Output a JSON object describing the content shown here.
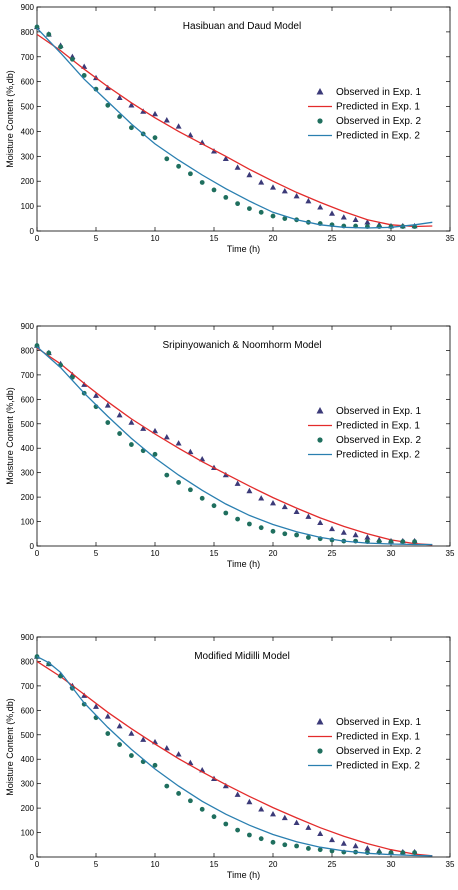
{
  "colors": {
    "observed_exp1": "#3b3a78",
    "predicted_exp1": "#e32b2b",
    "observed_exp2": "#1f6f5e",
    "predicted_exp2": "#2a7fb0"
  },
  "chart_data": [
    {
      "type": "scatter",
      "title": "Hasibuan and Daud Model",
      "xlabel": "Time (h)",
      "ylabel": "Moisture Content (%,db)",
      "xlim": [
        0,
        35
      ],
      "ylim": [
        0,
        900
      ],
      "xticks": [
        0,
        5,
        10,
        15,
        20,
        25,
        30,
        35
      ],
      "yticks": [
        0,
        100,
        200,
        300,
        400,
        500,
        600,
        700,
        800,
        900
      ],
      "legend_position": "right",
      "series": [
        {
          "name": "Observed in Exp. 1",
          "kind": "points",
          "marker": "triangle",
          "color": "#3b3a78",
          "x": [
            0,
            1,
            2,
            3,
            4,
            5,
            6,
            7,
            8,
            9,
            10,
            11,
            12,
            13,
            14,
            15,
            16,
            17,
            18,
            19,
            20,
            21,
            22,
            23,
            24,
            25,
            26,
            27,
            28,
            29,
            30,
            31,
            32
          ],
          "y": [
            820,
            790,
            745,
            700,
            660,
            615,
            575,
            535,
            505,
            480,
            470,
            445,
            420,
            385,
            355,
            320,
            290,
            255,
            225,
            195,
            175,
            160,
            140,
            120,
            95,
            70,
            55,
            45,
            35,
            25,
            20,
            20,
            20
          ]
        },
        {
          "name": "Predicted in Exp. 1",
          "kind": "line",
          "color": "#e32b2b",
          "x": [
            0,
            2,
            4,
            6,
            8,
            10,
            12,
            14,
            16,
            18,
            20,
            22,
            24,
            26,
            28,
            30,
            32,
            33.5
          ],
          "y": [
            790,
            725,
            650,
            580,
            515,
            455,
            400,
            350,
            300,
            248,
            200,
            155,
            115,
            78,
            45,
            25,
            18,
            20
          ]
        },
        {
          "name": "Observed in Exp. 2",
          "kind": "points",
          "marker": "circle",
          "color": "#1f6f5e",
          "x": [
            0,
            1,
            2,
            3,
            4,
            5,
            6,
            7,
            8,
            9,
            10,
            11,
            12,
            13,
            14,
            15,
            16,
            17,
            18,
            19,
            20,
            21,
            22,
            23,
            24,
            25,
            26,
            27,
            28,
            29,
            30,
            31,
            32
          ],
          "y": [
            820,
            790,
            740,
            690,
            625,
            570,
            505,
            460,
            415,
            390,
            375,
            290,
            260,
            230,
            195,
            165,
            135,
            110,
            90,
            75,
            60,
            50,
            45,
            35,
            30,
            25,
            20,
            20,
            18,
            18,
            18,
            18,
            18
          ]
        },
        {
          "name": "Predicted in Exp. 2",
          "kind": "line",
          "color": "#2a7fb0",
          "x": [
            0,
            2,
            4,
            6,
            8,
            10,
            12,
            14,
            16,
            18,
            20,
            22,
            24,
            26,
            28,
            30,
            32,
            33.5
          ],
          "y": [
            815,
            715,
            610,
            520,
            430,
            350,
            285,
            225,
            170,
            120,
            75,
            45,
            25,
            15,
            12,
            15,
            25,
            35
          ]
        }
      ]
    },
    {
      "type": "scatter",
      "title": "Sripinyowanich & Noomhorm Model",
      "xlabel": "Time (h)",
      "ylabel": "Moisture Content (%,db)",
      "xlim": [
        0,
        35
      ],
      "ylim": [
        0,
        900
      ],
      "xticks": [
        0,
        5,
        10,
        15,
        20,
        25,
        30,
        35
      ],
      "yticks": [
        0,
        100,
        200,
        300,
        400,
        500,
        600,
        700,
        800,
        900
      ],
      "legend_position": "right",
      "series": [
        {
          "name": "Observed in Exp. 1",
          "kind": "points",
          "marker": "triangle",
          "color": "#3b3a78",
          "x": [
            0,
            1,
            2,
            3,
            4,
            5,
            6,
            7,
            8,
            9,
            10,
            11,
            12,
            13,
            14,
            15,
            16,
            17,
            18,
            19,
            20,
            21,
            22,
            23,
            24,
            25,
            26,
            27,
            28,
            29,
            30,
            31,
            32
          ],
          "y": [
            820,
            790,
            745,
            700,
            660,
            615,
            575,
            535,
            505,
            480,
            470,
            445,
            420,
            385,
            355,
            320,
            290,
            255,
            225,
            195,
            175,
            160,
            140,
            120,
            95,
            70,
            55,
            45,
            35,
            25,
            20,
            20,
            20
          ]
        },
        {
          "name": "Predicted in Exp. 1",
          "kind": "line",
          "color": "#e32b2b",
          "x": [
            0,
            2,
            4,
            6,
            8,
            10,
            12,
            14,
            16,
            18,
            20,
            22,
            24,
            26,
            28,
            30,
            32,
            33.5
          ],
          "y": [
            810,
            745,
            665,
            590,
            520,
            458,
            400,
            345,
            295,
            245,
            198,
            155,
            115,
            80,
            50,
            25,
            10,
            5
          ]
        },
        {
          "name": "Observed in Exp. 2",
          "kind": "points",
          "marker": "circle",
          "color": "#1f6f5e",
          "x": [
            0,
            1,
            2,
            3,
            4,
            5,
            6,
            7,
            8,
            9,
            10,
            11,
            12,
            13,
            14,
            15,
            16,
            17,
            18,
            19,
            20,
            21,
            22,
            23,
            24,
            25,
            26,
            27,
            28,
            29,
            30,
            31,
            32
          ],
          "y": [
            820,
            790,
            740,
            690,
            625,
            570,
            505,
            460,
            415,
            390,
            375,
            290,
            260,
            230,
            195,
            165,
            135,
            110,
            90,
            75,
            60,
            50,
            45,
            35,
            30,
            25,
            20,
            20,
            18,
            18,
            18,
            18,
            18
          ]
        },
        {
          "name": "Predicted in Exp. 2",
          "kind": "line",
          "color": "#2a7fb0",
          "x": [
            0,
            2,
            4,
            6,
            8,
            10,
            12,
            14,
            16,
            18,
            20,
            22,
            24,
            26,
            28,
            30,
            32,
            33.5
          ],
          "y": [
            815,
            730,
            625,
            530,
            440,
            360,
            290,
            228,
            172,
            125,
            88,
            58,
            35,
            20,
            12,
            8,
            6,
            6
          ]
        }
      ]
    },
    {
      "type": "scatter",
      "title": "Modified Midilli Model",
      "xlabel": "Time (h)",
      "ylabel": "Moisture Content (%,db)",
      "xlim": [
        0,
        35
      ],
      "ylim": [
        0,
        900
      ],
      "xticks": [
        0,
        5,
        10,
        15,
        20,
        25,
        30,
        35
      ],
      "yticks": [
        0,
        100,
        200,
        300,
        400,
        500,
        600,
        700,
        800,
        900
      ],
      "legend_position": "right",
      "series": [
        {
          "name": "Observed in Exp. 1",
          "kind": "points",
          "marker": "triangle",
          "color": "#3b3a78",
          "x": [
            0,
            1,
            2,
            3,
            4,
            5,
            6,
            7,
            8,
            9,
            10,
            11,
            12,
            13,
            14,
            15,
            16,
            17,
            18,
            19,
            20,
            21,
            22,
            23,
            24,
            25,
            26,
            27,
            28,
            29,
            30,
            31,
            32
          ],
          "y": [
            820,
            790,
            745,
            700,
            660,
            615,
            575,
            535,
            505,
            480,
            470,
            445,
            420,
            385,
            355,
            320,
            290,
            255,
            225,
            195,
            175,
            160,
            140,
            120,
            95,
            70,
            55,
            45,
            35,
            25,
            20,
            20,
            20
          ]
        },
        {
          "name": "Predicted in Exp. 1",
          "kind": "line",
          "color": "#e32b2b",
          "x": [
            0,
            2,
            4,
            6,
            8,
            10,
            12,
            14,
            16,
            18,
            20,
            22,
            24,
            26,
            28,
            30,
            32,
            33.5
          ],
          "y": [
            800,
            738,
            665,
            592,
            525,
            462,
            402,
            348,
            296,
            248,
            202,
            160,
            120,
            85,
            55,
            30,
            12,
            5
          ]
        },
        {
          "name": "Observed in Exp. 2",
          "kind": "points",
          "marker": "circle",
          "color": "#1f6f5e",
          "x": [
            0,
            1,
            2,
            3,
            4,
            5,
            6,
            7,
            8,
            9,
            10,
            11,
            12,
            13,
            14,
            15,
            16,
            17,
            18,
            19,
            20,
            21,
            22,
            23,
            24,
            25,
            26,
            27,
            28,
            29,
            30,
            31,
            32
          ],
          "y": [
            820,
            790,
            740,
            690,
            625,
            570,
            505,
            460,
            415,
            390,
            375,
            290,
            260,
            230,
            195,
            165,
            135,
            110,
            90,
            75,
            60,
            50,
            45,
            35,
            30,
            25,
            20,
            20,
            18,
            18,
            18,
            18,
            18
          ]
        },
        {
          "name": "Predicted in Exp. 2",
          "kind": "line",
          "color": "#2a7fb0",
          "x": [
            0,
            1,
            2,
            4,
            6,
            8,
            10,
            12,
            14,
            16,
            18,
            20,
            22,
            24,
            26,
            28,
            30,
            32,
            33.5
          ],
          "y": [
            820,
            795,
            755,
            630,
            530,
            440,
            360,
            290,
            228,
            175,
            130,
            92,
            62,
            40,
            25,
            15,
            10,
            6,
            5
          ]
        }
      ]
    }
  ]
}
